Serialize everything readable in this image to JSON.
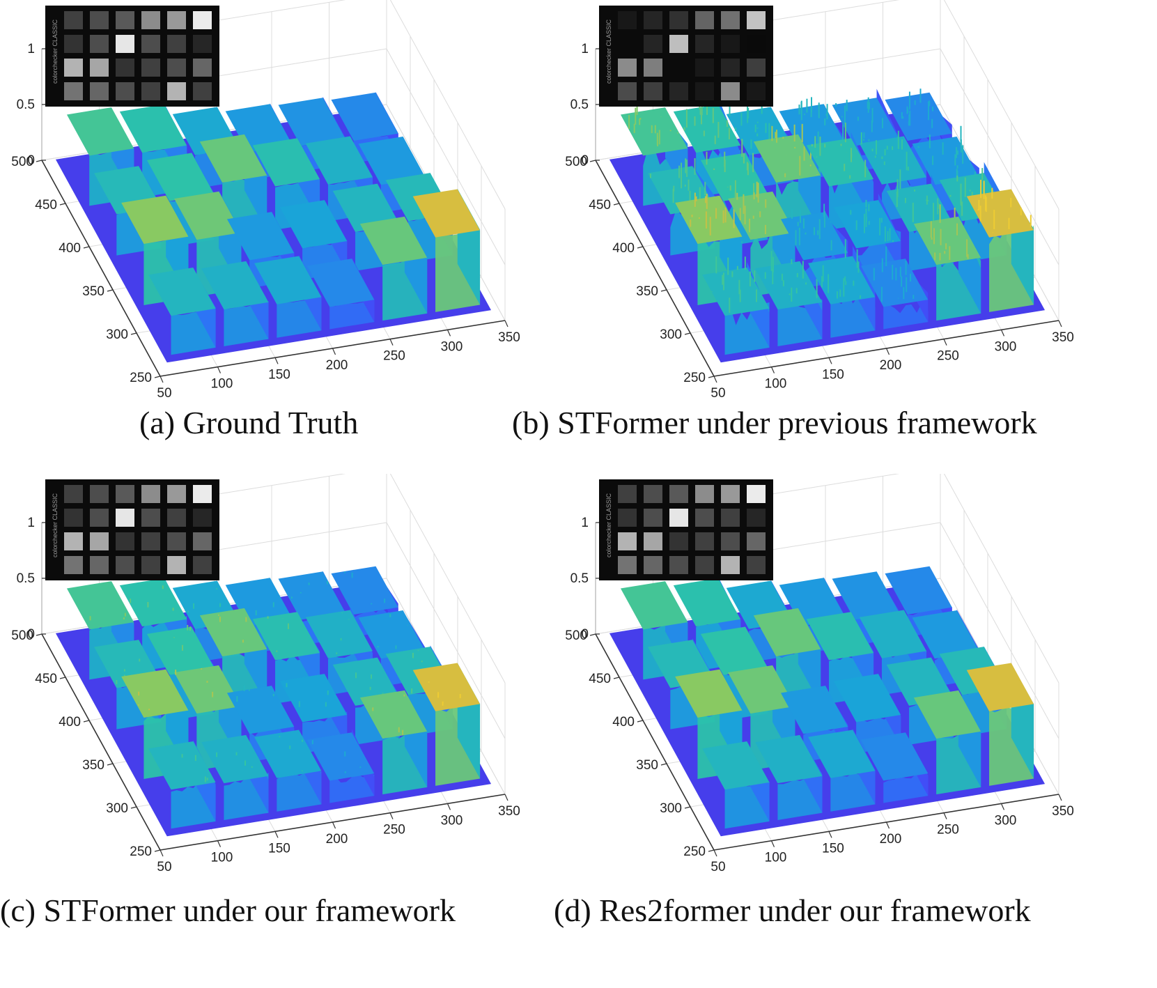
{
  "figure": {
    "panels": [
      {
        "id": "a",
        "caption": "(a) Ground Truth",
        "noise": 0.01
      },
      {
        "id": "b",
        "caption": "(b) STFormer under previous framework",
        "noise": 0.12
      },
      {
        "id": "c",
        "caption": "(c) STFormer under our framework",
        "noise": 0.035
      },
      {
        "id": "d",
        "caption": "(d) Res2former under our framework",
        "noise": 0.02
      }
    ],
    "inset_logo_text": "colorchecker CLASSIC"
  },
  "chart_data": {
    "type": "surface",
    "xlim": [
      50,
      350
    ],
    "ylim": [
      250,
      500
    ],
    "zlim": [
      0,
      1
    ],
    "x_ticks": [
      "50",
      "100",
      "150",
      "200",
      "250",
      "300",
      "350"
    ],
    "y_ticks": [
      "250",
      "300",
      "350",
      "400",
      "450",
      "500"
    ],
    "z_ticks": [
      "0",
      "0.5",
      "1"
    ],
    "colormap": [
      "#3e26a8",
      "#4743f8",
      "#2c76f5",
      "#1aa5d8",
      "#2ec4a6",
      "#8cc960",
      "#e4bc3a",
      "#f9e02c"
    ],
    "patch_grid_rows": 4,
    "patch_grid_cols": 6,
    "patch_heights": [
      [
        0.5,
        0.45,
        0.35,
        0.3,
        0.28,
        0.25
      ],
      [
        0.42,
        0.46,
        0.55,
        0.44,
        0.38,
        0.3
      ],
      [
        0.6,
        0.56,
        0.3,
        0.33,
        0.4,
        0.42
      ],
      [
        0.4,
        0.38,
        0.35,
        0.25,
        0.55,
        0.72
      ]
    ]
  }
}
